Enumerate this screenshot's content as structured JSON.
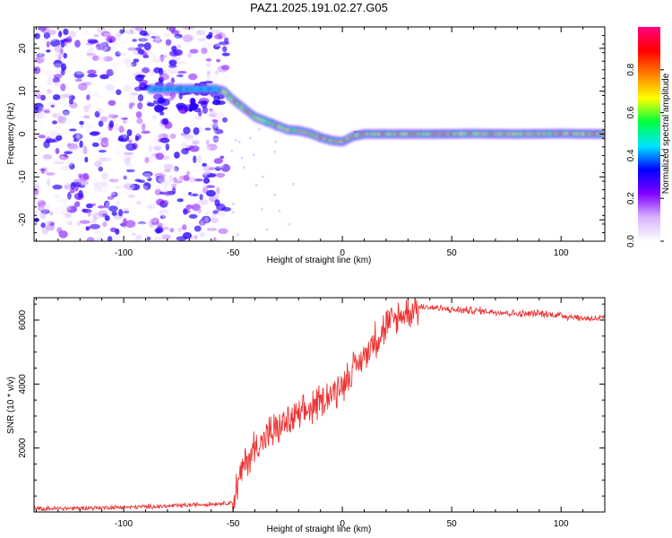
{
  "title": "PAZ1.2025.191.02.27.G05",
  "chart_data": [
    {
      "type": "heatmap",
      "name": "spectrogram",
      "xlabel": "Height of straight line (km)",
      "ylabel": "Frequency (Hz)",
      "xlim": [
        -141,
        120
      ],
      "ylim": [
        -25,
        25
      ],
      "xticks": [
        -100,
        -50,
        0,
        50,
        100
      ],
      "xtick_labels": [
        "-100",
        "-50",
        "0",
        "50",
        "100"
      ],
      "yticks": [
        -20,
        -10,
        0,
        10,
        20
      ],
      "ytick_labels": [
        "-20",
        "-10",
        "0",
        "10",
        "20"
      ],
      "colorbar": {
        "label": "Normalized spectral amplitude",
        "range": [
          0,
          1
        ],
        "ticks": [
          0.0,
          0.2,
          0.4,
          0.6,
          0.8
        ],
        "tick_labels": [
          "0.0",
          "0.2",
          "0.4",
          "0.6",
          "0.8"
        ],
        "colors": [
          "#ffffff",
          "#d9b3ff",
          "#8000ff",
          "#0000ff",
          "#00e5ff",
          "#00ff40",
          "#ffff00",
          "#ff8000",
          "#ff0000",
          "#ff0080"
        ]
      },
      "ridge": {
        "x": [
          -58,
          -54,
          -50,
          -45,
          -40,
          -35,
          -30,
          -25,
          -20,
          -15,
          -10,
          -5,
          0,
          5,
          10,
          20,
          40,
          60,
          80,
          100,
          120
        ],
        "frequency": [
          10.5,
          10,
          8,
          6,
          4,
          3,
          2,
          1,
          0.8,
          0.2,
          -0.8,
          -1.5,
          -1.8,
          -0.5,
          0,
          0,
          0,
          0.1,
          0,
          0.1,
          0
        ]
      },
      "noise_region": [
        -141,
        -53
      ],
      "grid": false,
      "legend": "none"
    },
    {
      "type": "line",
      "name": "snr",
      "xlabel": "Height of straight line (km)",
      "ylabel": "SNR (10 * v/v)",
      "xlim": [
        -141,
        120
      ],
      "ylim": [
        0,
        6700
      ],
      "xticks": [
        -100,
        -50,
        0,
        50,
        100
      ],
      "xtick_labels": [
        "-100",
        "-50",
        "0",
        "50",
        "100"
      ],
      "yticks": [
        2000,
        4000,
        6000
      ],
      "ytick_labels": [
        "2000",
        "4000",
        "6000"
      ],
      "color": "#ee3333",
      "x": [
        -141,
        -120,
        -100,
        -80,
        -60,
        -50,
        -48,
        -45,
        -42,
        -40,
        -35,
        -30,
        -25,
        -20,
        -15,
        -10,
        -5,
        0,
        5,
        10,
        15,
        20,
        25,
        30,
        35,
        40,
        50,
        60,
        70,
        80,
        90,
        100,
        110,
        120
      ],
      "y": [
        100,
        120,
        150,
        180,
        250,
        300,
        800,
        1500,
        1800,
        2000,
        2300,
        2600,
        2800,
        3000,
        3200,
        3400,
        3700,
        4000,
        4400,
        4900,
        5400,
        5800,
        6050,
        6250,
        6400,
        6400,
        6320,
        6300,
        6260,
        6200,
        6200,
        6150,
        6050,
        6050
      ],
      "grid": false,
      "legend": "none"
    }
  ]
}
